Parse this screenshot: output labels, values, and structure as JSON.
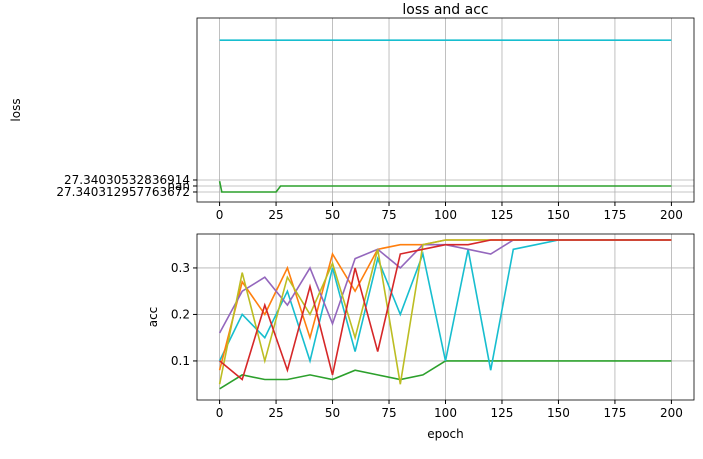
{
  "chart_data": [
    {
      "type": "line",
      "title": "loss and acc",
      "ylabel": "loss",
      "grid": true,
      "xlim": [
        -10,
        210
      ],
      "xticks": [
        0,
        25,
        50,
        75,
        100,
        125,
        150,
        175,
        200
      ],
      "ylim": [
        -1.67,
        29
      ],
      "yticks": [
        {
          "value": 0,
          "label": "27.340312957763672"
        },
        {
          "value": 1,
          "label": "nan"
        },
        {
          "value": 2,
          "label": "27.34030532836914"
        }
      ],
      "series": [
        {
          "color": "#17becf",
          "x": [
            0,
            200
          ],
          "values": [
            25.3,
            25.3
          ]
        },
        {
          "color": "#2ca02c",
          "x": [
            0,
            1,
            25,
            27,
            30,
            200
          ],
          "values": [
            1.8,
            0,
            0,
            1,
            1,
            1
          ]
        }
      ]
    },
    {
      "type": "line",
      "xlabel": "epoch",
      "ylabel": "acc",
      "grid": true,
      "xlim": [
        -10,
        210
      ],
      "xticks": [
        0,
        25,
        50,
        75,
        100,
        125,
        150,
        175,
        200
      ],
      "ylim": [
        0.016,
        0.373
      ],
      "yticks": [
        0.1,
        0.2,
        0.3
      ],
      "series": [
        {
          "color": "#2ca02c",
          "x": [
            0,
            10,
            20,
            30,
            40,
            50,
            60,
            70,
            80,
            90,
            100,
            110,
            120,
            130,
            140,
            150,
            160,
            170,
            180,
            190,
            200
          ],
          "values": [
            0.04,
            0.07,
            0.06,
            0.06,
            0.07,
            0.06,
            0.08,
            0.07,
            0.06,
            0.07,
            0.1,
            0.1,
            0.1,
            0.1,
            0.1,
            0.1,
            0.1,
            0.1,
            0.1,
            0.1,
            0.1
          ]
        },
        {
          "color": "#17becf",
          "x": [
            0,
            10,
            20,
            30,
            40,
            50,
            60,
            70,
            80,
            90,
            100,
            110,
            120,
            130,
            140,
            150,
            160,
            170,
            180,
            190,
            200
          ],
          "values": [
            0.1,
            0.2,
            0.15,
            0.25,
            0.1,
            0.3,
            0.12,
            0.32,
            0.2,
            0.33,
            0.1,
            0.34,
            0.08,
            0.34,
            0.35,
            0.36,
            0.36,
            0.36,
            0.36,
            0.36,
            0.36
          ]
        },
        {
          "color": "#ff7f0e",
          "x": [
            0,
            10,
            20,
            30,
            40,
            50,
            60,
            70,
            80,
            90,
            100,
            110,
            120,
            130,
            140,
            150,
            160,
            170,
            180,
            190,
            200
          ],
          "values": [
            0.08,
            0.27,
            0.2,
            0.3,
            0.15,
            0.33,
            0.25,
            0.34,
            0.35,
            0.35,
            0.36,
            0.36,
            0.36,
            0.36,
            0.36,
            0.36,
            0.36,
            0.36,
            0.36,
            0.36,
            0.36
          ]
        },
        {
          "color": "#9467bd",
          "x": [
            0,
            10,
            20,
            30,
            40,
            50,
            60,
            70,
            80,
            90,
            100,
            110,
            120,
            130,
            140,
            150,
            160,
            170,
            180,
            190,
            200
          ],
          "values": [
            0.16,
            0.25,
            0.28,
            0.22,
            0.3,
            0.18,
            0.32,
            0.34,
            0.3,
            0.35,
            0.35,
            0.34,
            0.33,
            0.36,
            0.36,
            0.36,
            0.36,
            0.36,
            0.36,
            0.36,
            0.36
          ]
        },
        {
          "color": "#bcbd22",
          "x": [
            0,
            10,
            20,
            30,
            40,
            50,
            60,
            70,
            80,
            90,
            100,
            110,
            120,
            130,
            140,
            150,
            160,
            170,
            180,
            190,
            200
          ],
          "values": [
            0.05,
            0.29,
            0.1,
            0.28,
            0.2,
            0.31,
            0.15,
            0.34,
            0.05,
            0.35,
            0.36,
            0.36,
            0.36,
            0.36,
            0.36,
            0.36,
            0.36,
            0.36,
            0.36,
            0.36,
            0.36
          ]
        },
        {
          "color": "#d62728",
          "x": [
            0,
            10,
            20,
            30,
            40,
            50,
            60,
            70,
            80,
            90,
            100,
            110,
            120,
            130,
            140,
            150,
            160,
            170,
            180,
            190,
            200
          ],
          "values": [
            0.1,
            0.06,
            0.22,
            0.08,
            0.26,
            0.07,
            0.3,
            0.12,
            0.33,
            0.34,
            0.35,
            0.35,
            0.36,
            0.36,
            0.36,
            0.36,
            0.36,
            0.36,
            0.36,
            0.36,
            0.36
          ]
        }
      ]
    }
  ]
}
